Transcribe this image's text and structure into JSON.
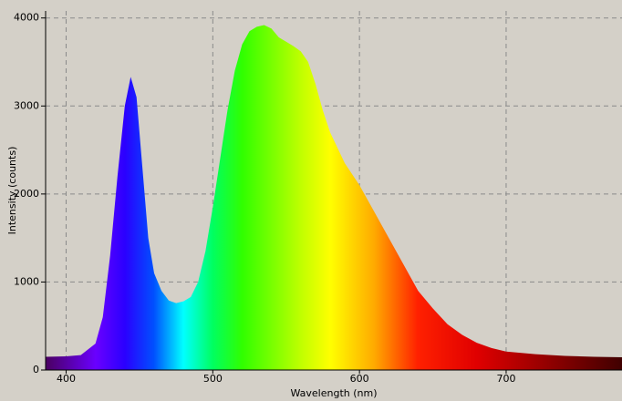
{
  "chart_data": {
    "type": "area",
    "xlabel": "Wavelength (nm)",
    "ylabel": "Intensity (counts)",
    "x": [
      386,
      400,
      410,
      420,
      425,
      430,
      435,
      440,
      444,
      448,
      452,
      456,
      460,
      465,
      470,
      475,
      480,
      485,
      490,
      495,
      500,
      505,
      510,
      515,
      520,
      525,
      530,
      535,
      540,
      545,
      550,
      555,
      560,
      565,
      570,
      575,
      580,
      590,
      600,
      610,
      620,
      630,
      640,
      650,
      660,
      670,
      680,
      690,
      700,
      720,
      740,
      760,
      779
    ],
    "values": [
      150,
      155,
      170,
      300,
      600,
      1300,
      2200,
      3000,
      3330,
      3100,
      2300,
      1500,
      1100,
      900,
      790,
      760,
      780,
      830,
      1000,
      1350,
      1850,
      2400,
      2950,
      3400,
      3700,
      3850,
      3900,
      3920,
      3880,
      3780,
      3730,
      3680,
      3620,
      3500,
      3250,
      2950,
      2700,
      2350,
      2100,
      1800,
      1500,
      1200,
      900,
      700,
      520,
      400,
      310,
      250,
      210,
      180,
      160,
      150,
      145
    ],
    "xlim": [
      386,
      779
    ],
    "ylim": [
      0,
      4080
    ],
    "xticks": [
      400,
      500,
      600,
      700
    ],
    "yticks": [
      0,
      1000,
      2000,
      3000,
      4000
    ],
    "grid": true
  }
}
